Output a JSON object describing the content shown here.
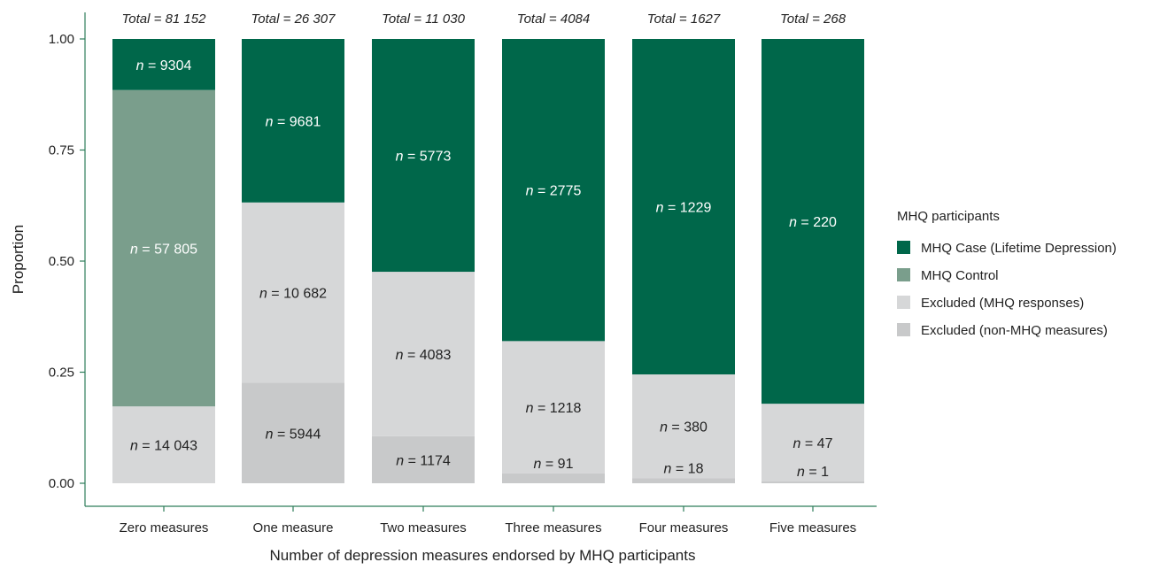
{
  "chart_data": {
    "type": "bar",
    "stacked": true,
    "xlabel": "Number of depression measures endorsed by MHQ participants",
    "ylabel": "Proportion",
    "ylim": [
      0,
      1
    ],
    "yticks": [
      "0.00",
      "0.25",
      "0.50",
      "0.75",
      "1.00"
    ],
    "categories": [
      "Zero measures",
      "One measure",
      "Two measures",
      "Three measures",
      "Four measures",
      "Five measures"
    ],
    "totals": [
      "Total = 81 152",
      "Total = 26 307",
      "Total = 11 030",
      "Total = 4084",
      "Total = 1627",
      "Total = 268"
    ],
    "legend_title": "MHQ participants",
    "legend_position": "right",
    "series": [
      {
        "name": "Excluded (non-MHQ measures)",
        "color": "#c8c9ca",
        "values": [
          0,
          0.226,
          0.106,
          0.022,
          0.011,
          0.004
        ],
        "labels": [
          "",
          "n = 5944",
          "n = 1174",
          "n = 91",
          "n = 18",
          "n = 1"
        ]
      },
      {
        "name": "Excluded (MHQ responses)",
        "color": "#d6d7d8",
        "values": [
          0.173,
          0.406,
          0.37,
          0.298,
          0.234,
          0.175
        ],
        "labels": [
          "n = 14 043",
          "n = 10 682",
          "n = 4083",
          "n = 1218",
          "n = 380",
          "n = 47"
        ]
      },
      {
        "name": "MHQ Control",
        "color": "#7a9e8c",
        "values": [
          0.712,
          0,
          0,
          0,
          0,
          0
        ],
        "labels": [
          "n = 57 805",
          "",
          "",
          "",
          "",
          ""
        ]
      },
      {
        "name": "MHQ Case (Lifetime Depression)",
        "color": "#00674a",
        "values": [
          0.115,
          0.368,
          0.524,
          0.68,
          0.755,
          0.821
        ],
        "labels": [
          "n = 9304",
          "n = 9681",
          "n = 5773",
          "n = 2775",
          "n = 1229",
          "n = 220"
        ]
      }
    ],
    "legend_order": [
      "MHQ Case (Lifetime Depression)",
      "MHQ Control",
      "Excluded (MHQ responses)",
      "Excluded (non-MHQ measures)"
    ],
    "axis_color": "#2e7d5b"
  }
}
